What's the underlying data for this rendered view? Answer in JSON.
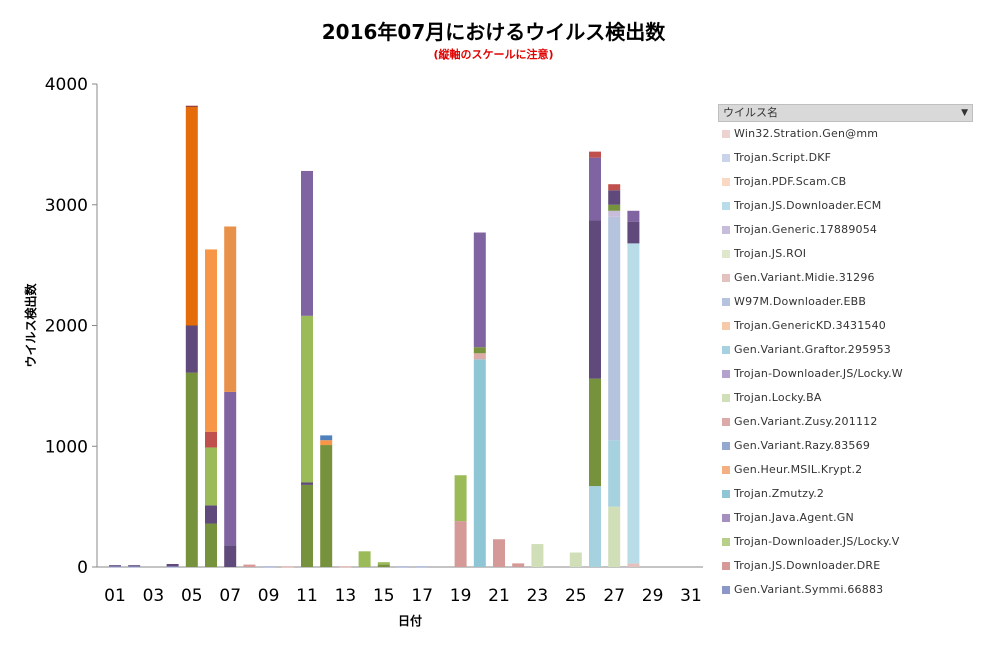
{
  "chart_data": {
    "type": "bar",
    "stacked": true,
    "title": "2016年07月におけるウイルス検出数",
    "subtitle": "(縦軸のスケールに注意)",
    "xlabel": "日付",
    "ylabel": "ウイルス検出数",
    "ylim": [
      0,
      4000
    ],
    "yticks": [
      0,
      1000,
      2000,
      3000,
      4000
    ],
    "xtick_labels": [
      "01",
      "03",
      "05",
      "07",
      "09",
      "11",
      "13",
      "15",
      "17",
      "19",
      "21",
      "23",
      "25",
      "27",
      "29",
      "31"
    ],
    "grid": false,
    "legend_position": "right",
    "legend_title": "ウイルス名",
    "categories": [
      "01",
      "02",
      "03",
      "04",
      "05",
      "06",
      "07",
      "08",
      "09",
      "10",
      "11",
      "12",
      "13",
      "14",
      "15",
      "16",
      "17",
      "18",
      "19",
      "20",
      "21",
      "22",
      "23",
      "24",
      "25",
      "26",
      "27",
      "28",
      "29",
      "30",
      "31"
    ],
    "series": [
      {
        "name": "Gen.Variant.Symmi.66883",
        "color": "#8a97c8",
        "values": [
          5,
          5,
          0,
          5,
          0,
          0,
          0,
          0,
          5,
          0,
          0,
          0,
          0,
          0,
          0,
          5,
          5,
          0,
          0,
          0,
          0,
          0,
          0,
          0,
          0,
          0,
          0,
          0,
          0,
          0,
          0
        ]
      },
      {
        "name": "Trojan.JS.Downloader.DRE",
        "color": "#d59a97",
        "values": [
          0,
          0,
          0,
          0,
          0,
          0,
          0,
          20,
          0,
          5,
          0,
          0,
          5,
          0,
          0,
          0,
          0,
          0,
          380,
          0,
          230,
          30,
          0,
          0,
          0,
          0,
          0,
          0,
          0,
          0,
          0
        ]
      },
      {
        "name": "Trojan-Downloader.JS/Locky.V",
        "color": "#b7cf8a",
        "values": [
          0,
          0,
          0,
          0,
          0,
          0,
          0,
          0,
          0,
          0,
          0,
          0,
          0,
          0,
          0,
          0,
          0,
          0,
          0,
          0,
          0,
          0,
          0,
          0,
          0,
          0,
          0,
          0,
          0,
          0,
          0
        ]
      },
      {
        "name": "Trojan.Java.Agent.GN",
        "color": "#a58fbf",
        "values": [
          0,
          0,
          0,
          0,
          0,
          0,
          0,
          0,
          0,
          0,
          0,
          0,
          0,
          0,
          0,
          0,
          0,
          0,
          0,
          0,
          0,
          0,
          0,
          0,
          0,
          0,
          0,
          0,
          0,
          0,
          0
        ]
      },
      {
        "name": "Trojan.Zmutzy.2",
        "color": "#8ec6d6",
        "values": [
          0,
          0,
          0,
          0,
          0,
          0,
          0,
          0,
          0,
          0,
          0,
          0,
          0,
          0,
          0,
          0,
          0,
          0,
          0,
          1720,
          0,
          0,
          0,
          0,
          0,
          0,
          0,
          0,
          0,
          0,
          0
        ]
      },
      {
        "name": "Gen.Heur.MSIL.Krypt.2",
        "color": "#f3b183",
        "values": [
          0,
          0,
          0,
          0,
          0,
          0,
          0,
          0,
          0,
          0,
          0,
          0,
          0,
          0,
          0,
          0,
          0,
          0,
          0,
          0,
          0,
          0,
          0,
          0,
          0,
          0,
          0,
          0,
          0,
          0,
          0
        ]
      },
      {
        "name": "Gen.Variant.Razy.83569",
        "color": "#95a9d0",
        "values": [
          0,
          0,
          0,
          0,
          0,
          0,
          0,
          0,
          0,
          0,
          0,
          0,
          0,
          0,
          0,
          0,
          0,
          0,
          0,
          0,
          0,
          0,
          0,
          0,
          0,
          0,
          0,
          0,
          0,
          0,
          0
        ]
      },
      {
        "name": "Gen.Variant.Zusy.201112",
        "color": "#dcaaa8",
        "values": [
          0,
          0,
          0,
          0,
          0,
          0,
          0,
          0,
          0,
          0,
          0,
          0,
          0,
          0,
          0,
          0,
          0,
          0,
          0,
          50,
          0,
          0,
          0,
          0,
          0,
          0,
          0,
          0,
          0,
          0,
          0
        ]
      },
      {
        "name": "Trojan.Locky.BA",
        "color": "#d0dfb8",
        "values": [
          0,
          0,
          0,
          0,
          0,
          0,
          0,
          0,
          0,
          0,
          0,
          0,
          0,
          0,
          0,
          0,
          0,
          0,
          0,
          0,
          0,
          0,
          190,
          0,
          120,
          0,
          500,
          0,
          0,
          0,
          0
        ]
      },
      {
        "name": "Trojan-Downloader.JS/Locky.W",
        "color": "#b2a2cc",
        "values": [
          0,
          0,
          0,
          0,
          0,
          0,
          0,
          0,
          0,
          0,
          0,
          0,
          0,
          0,
          0,
          0,
          0,
          0,
          0,
          0,
          0,
          0,
          0,
          0,
          0,
          0,
          0,
          0,
          0,
          0,
          0
        ]
      },
      {
        "name": "Gen.Variant.Graftor.295953",
        "color": "#a6d1df",
        "values": [
          0,
          0,
          0,
          0,
          0,
          0,
          0,
          0,
          0,
          0,
          0,
          0,
          0,
          0,
          0,
          0,
          0,
          0,
          0,
          0,
          0,
          0,
          0,
          0,
          0,
          670,
          550,
          0,
          0,
          0,
          0
        ]
      },
      {
        "name": "Trojan.GenericKD.3431540",
        "color": "#f6c9a8",
        "values": [
          0,
          0,
          0,
          0,
          0,
          0,
          0,
          0,
          0,
          0,
          0,
          0,
          0,
          0,
          0,
          0,
          0,
          0,
          0,
          0,
          0,
          0,
          0,
          0,
          0,
          0,
          0,
          0,
          0,
          0,
          0
        ]
      },
      {
        "name": "W97M.Downloader.EBB",
        "color": "#b5c3df",
        "values": [
          0,
          0,
          0,
          0,
          0,
          0,
          0,
          0,
          0,
          0,
          0,
          0,
          0,
          0,
          0,
          0,
          0,
          0,
          0,
          0,
          0,
          0,
          0,
          0,
          0,
          0,
          1850,
          0,
          0,
          0,
          0
        ]
      },
      {
        "name": "Gen.Variant.Midie.31296",
        "color": "#e2c1bf",
        "values": [
          0,
          0,
          0,
          0,
          0,
          0,
          0,
          0,
          0,
          0,
          0,
          0,
          0,
          0,
          0,
          0,
          0,
          0,
          0,
          0,
          0,
          0,
          0,
          0,
          0,
          0,
          0,
          30,
          0,
          0,
          0
        ]
      },
      {
        "name": "Trojan.JS.ROI",
        "color": "#dfe8cc",
        "values": [
          0,
          0,
          0,
          0,
          0,
          0,
          0,
          0,
          0,
          0,
          0,
          0,
          0,
          0,
          0,
          0,
          0,
          0,
          0,
          0,
          0,
          0,
          0,
          0,
          0,
          0,
          0,
          0,
          0,
          0,
          0
        ]
      },
      {
        "name": "Trojan.Generic.17889054",
        "color": "#c8bcdb",
        "values": [
          0,
          0,
          0,
          0,
          0,
          0,
          0,
          0,
          0,
          0,
          0,
          0,
          0,
          0,
          0,
          0,
          0,
          0,
          0,
          0,
          0,
          0,
          0,
          0,
          0,
          0,
          50,
          0,
          0,
          0,
          0
        ]
      },
      {
        "name": "Trojan.JS.Downloader.ECM",
        "color": "#b9dde8",
        "values": [
          0,
          0,
          0,
          0,
          0,
          0,
          0,
          0,
          0,
          0,
          0,
          0,
          0,
          0,
          0,
          0,
          0,
          0,
          0,
          0,
          0,
          0,
          0,
          0,
          0,
          0,
          0,
          2650,
          0,
          0,
          0
        ]
      },
      {
        "name": "Trojan.PDF.Scam.CB",
        "color": "#f9d9c3",
        "values": [
          0,
          0,
          0,
          0,
          0,
          0,
          0,
          0,
          0,
          0,
          0,
          0,
          0,
          0,
          0,
          0,
          0,
          0,
          0,
          0,
          0,
          0,
          0,
          0,
          0,
          0,
          0,
          0,
          0,
          0,
          0
        ]
      },
      {
        "name": "Trojan.Script.DKF",
        "color": "#c9d4ea",
        "values": [
          0,
          0,
          0,
          0,
          0,
          0,
          0,
          0,
          0,
          0,
          0,
          0,
          0,
          0,
          0,
          0,
          0,
          0,
          0,
          0,
          0,
          0,
          0,
          0,
          0,
          0,
          0,
          0,
          0,
          0,
          0
        ]
      },
      {
        "name": "Win32.Stration.Gen@mm",
        "color": "#ecd3d2",
        "values": [
          0,
          0,
          0,
          0,
          0,
          0,
          0,
          0,
          0,
          0,
          0,
          0,
          0,
          0,
          0,
          0,
          0,
          0,
          0,
          0,
          0,
          0,
          0,
          0,
          0,
          0,
          0,
          0,
          0,
          0,
          0
        ]
      },
      {
        "name": "",
        "color": "#77923c",
        "values": [
          0,
          0,
          0,
          0,
          1610,
          360,
          0,
          0,
          0,
          0,
          680,
          1010,
          0,
          0,
          20,
          0,
          0,
          0,
          0,
          50,
          0,
          0,
          0,
          0,
          0,
          890,
          50,
          0,
          0,
          0,
          0
        ]
      },
      {
        "name": "",
        "color": "#604a7b",
        "values": [
          10,
          10,
          0,
          20,
          390,
          150,
          180,
          0,
          0,
          0,
          20,
          0,
          0,
          0,
          0,
          0,
          0,
          0,
          0,
          0,
          0,
          0,
          0,
          0,
          0,
          1310,
          120,
          180,
          0,
          0,
          0
        ]
      },
      {
        "name": "",
        "color": "#9bbb59",
        "values": [
          0,
          0,
          0,
          0,
          0,
          480,
          0,
          0,
          0,
          0,
          1380,
          0,
          0,
          130,
          20,
          0,
          0,
          0,
          380,
          0,
          0,
          0,
          0,
          0,
          0,
          0,
          0,
          0,
          0,
          0,
          0
        ]
      },
      {
        "name": "",
        "color": "#8064a2",
        "values": [
          0,
          0,
          0,
          0,
          0,
          0,
          1270,
          0,
          0,
          0,
          1200,
          0,
          0,
          0,
          0,
          0,
          0,
          0,
          0,
          950,
          0,
          0,
          0,
          0,
          0,
          520,
          0,
          90,
          0,
          0,
          0
        ]
      },
      {
        "name": "",
        "color": "#c0504d",
        "values": [
          0,
          0,
          0,
          0,
          0,
          130,
          0,
          0,
          0,
          0,
          0,
          0,
          0,
          0,
          0,
          0,
          0,
          0,
          0,
          0,
          0,
          0,
          0,
          0,
          0,
          50,
          50,
          0,
          0,
          0,
          0
        ]
      },
      {
        "name": "",
        "color": "#f79646",
        "values": [
          0,
          0,
          0,
          0,
          0,
          1510,
          0,
          0,
          0,
          0,
          0,
          40,
          0,
          0,
          0,
          0,
          0,
          0,
          0,
          0,
          0,
          0,
          0,
          0,
          0,
          0,
          0,
          0,
          0,
          0,
          0
        ]
      },
      {
        "name": "",
        "color": "#e46c0a",
        "values": [
          0,
          0,
          0,
          0,
          1810,
          0,
          0,
          0,
          0,
          0,
          0,
          0,
          0,
          0,
          0,
          0,
          0,
          0,
          0,
          0,
          0,
          0,
          0,
          0,
          0,
          0,
          0,
          0,
          0,
          0,
          0
        ]
      },
      {
        "name": "",
        "color": "#e8914a",
        "values": [
          0,
          0,
          0,
          0,
          0,
          0,
          1370,
          0,
          0,
          0,
          0,
          0,
          0,
          0,
          0,
          0,
          0,
          0,
          0,
          0,
          0,
          0,
          0,
          0,
          0,
          0,
          0,
          0,
          0,
          0,
          0
        ]
      },
      {
        "name": "",
        "color": "#4f81bd",
        "values": [
          0,
          0,
          0,
          0,
          0,
          0,
          0,
          0,
          0,
          0,
          0,
          40,
          0,
          0,
          0,
          0,
          0,
          0,
          0,
          0,
          0,
          0,
          0,
          0,
          0,
          0,
          0,
          0,
          0,
          0,
          0
        ]
      },
      {
        "name": "",
        "color": "#953735",
        "values": [
          0,
          0,
          0,
          0,
          10,
          0,
          0,
          0,
          0,
          0,
          0,
          0,
          0,
          0,
          0,
          0,
          0,
          0,
          0,
          0,
          0,
          0,
          0,
          0,
          0,
          0,
          0,
          0,
          0,
          0,
          0
        ]
      }
    ]
  },
  "legend": {
    "title": "ウイルス名",
    "dropdown_icon": "dropdown-arrow-icon",
    "items": [
      {
        "label": "Win32.Stration.Gen@mm",
        "color": "#ecd3d2"
      },
      {
        "label": "Trojan.Script.DKF",
        "color": "#c9d4ea"
      },
      {
        "label": "Trojan.PDF.Scam.CB",
        "color": "#f9d9c3"
      },
      {
        "label": "Trojan.JS.Downloader.ECM",
        "color": "#b9dde8"
      },
      {
        "label": "Trojan.Generic.17889054",
        "color": "#c8bcdb"
      },
      {
        "label": "Trojan.JS.ROI",
        "color": "#dfe8cc"
      },
      {
        "label": "Gen.Variant.Midie.31296",
        "color": "#e2c1bf"
      },
      {
        "label": "W97M.Downloader.EBB",
        "color": "#b5c3df"
      },
      {
        "label": "Trojan.GenericKD.3431540",
        "color": "#f6c9a8"
      },
      {
        "label": "Gen.Variant.Graftor.295953",
        "color": "#a6d1df"
      },
      {
        "label": "Trojan-Downloader.JS/Locky.W",
        "color": "#b2a2cc"
      },
      {
        "label": "Trojan.Locky.BA",
        "color": "#d0dfb8"
      },
      {
        "label": "Gen.Variant.Zusy.201112",
        "color": "#dcaaa8"
      },
      {
        "label": "Gen.Variant.Razy.83569",
        "color": "#95a9d0"
      },
      {
        "label": "Gen.Heur.MSIL.Krypt.2",
        "color": "#f3b183"
      },
      {
        "label": "Trojan.Zmutzy.2",
        "color": "#8ec6d6"
      },
      {
        "label": "Trojan.Java.Agent.GN",
        "color": "#a58fbf"
      },
      {
        "label": "Trojan-Downloader.JS/Locky.V",
        "color": "#b7cf8a"
      },
      {
        "label": "Trojan.JS.Downloader.DRE",
        "color": "#d59a97"
      },
      {
        "label": "Gen.Variant.Symmi.66883",
        "color": "#8a97c8"
      }
    ]
  }
}
